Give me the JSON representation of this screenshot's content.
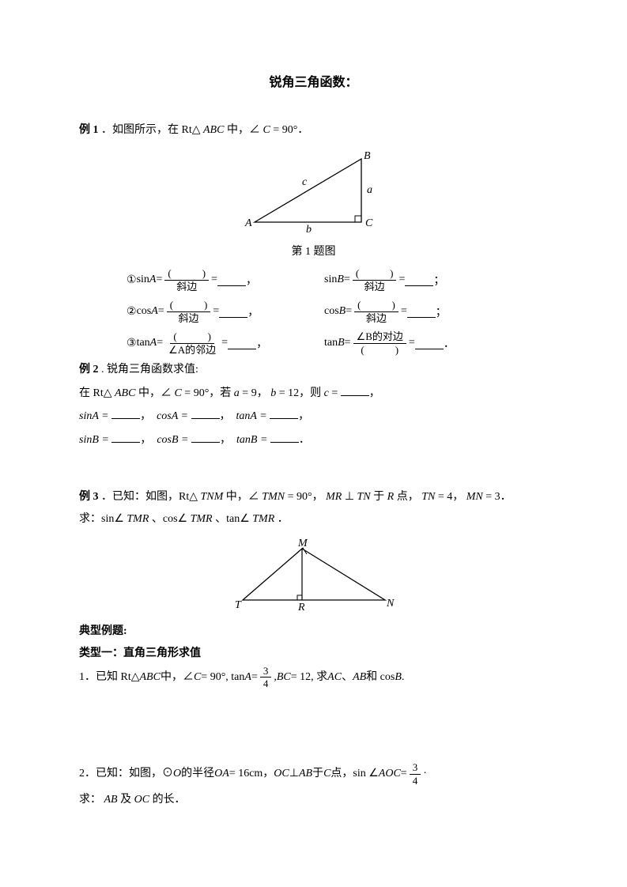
{
  "title": "锐角三角函数：",
  "ex1": {
    "label": "例 1",
    "text": "．如图所示，在 Rt△",
    "tri": "ABC",
    "after": " 中，∠",
    "ang": "C",
    "eq": " = 90°．",
    "caption": "第 1 题图",
    "fig": {
      "A": "A",
      "B": "B",
      "C": "C",
      "a": "a",
      "b": "b",
      "c": "c",
      "bg": "#ffffff",
      "stroke": "#000000"
    },
    "rows": [
      {
        "n": "①",
        "lf": "sin",
        "la": "A",
        "lnum": "(　　　)",
        "lden": "斜边",
        "rf": "sin",
        "ra": "B",
        "rnum": "(　　　)",
        "rden": "斜边",
        "endl": "，",
        "endr": "；"
      },
      {
        "n": "②",
        "lf": "cos",
        "la": "A",
        "lnum": "(　　　)",
        "lden": "斜边",
        "rf": "cos",
        "ra": "B",
        "rnum": "(　　　)",
        "rden": "斜边",
        "endl": "，",
        "endr": "；"
      },
      {
        "n": "③",
        "lf": "tan",
        "la": "A",
        "lnum": "(　　　)",
        "lden": "∠A的邻边",
        "rf": "tan",
        "ra": "B",
        "rnum": "∠B的对边",
        "rden": "(　　　)",
        "endl": "，",
        "endr": "．"
      }
    ]
  },
  "ex2": {
    "label": "例 2",
    "title": ". 锐角三角函数求值:",
    "line1_a": "在 Rt△",
    "tri": "ABC",
    "line1_b": " 中，∠",
    "ang": "C",
    "line1_c": " = 90°，若 ",
    "a": "a",
    "av": " = 9，",
    "b": "b",
    "bv": " = 12，则 ",
    "c": "c",
    "cv": " = ",
    "line2_items": [
      "sinA = ",
      "cosA = ",
      "tanA = "
    ],
    "line3_items": [
      "sinB = ",
      "cosB = ",
      "tanB = "
    ]
  },
  "ex3": {
    "label": "例 3",
    "text1": "．已知：如图，Rt△",
    "tri": "TNM",
    "text2": " 中，∠",
    "ang": "TMN",
    "text3": " = 90°，",
    "perp1": "MR",
    "perp_sym": "⊥",
    "perp2": "TN",
    "text4": " 于 ",
    "R": "R",
    "text5": " 点，",
    "TN": "TN",
    "TNv": " = 4，",
    "MN": "MN",
    "MNv": " = 3．",
    "q": "求：sin∠",
    "t1": "TMR",
    "q2": "、cos∠",
    "t2": "TMR",
    "q3": "、tan∠",
    "t3": "TMR",
    "q4": "．",
    "fig": {
      "T": "T",
      "M": "M",
      "N": "N",
      "R": "R",
      "stroke": "#000000"
    }
  },
  "typical": {
    "header": "典型例题:",
    "type1": "类型一：直角三角形求值"
  },
  "p1": {
    "n": "1．",
    "a": "已知 Rt△",
    "tri": "ABC",
    "b": " 中，∠",
    "ang": "C",
    "c": " = 90°, tan ",
    "A": "A",
    "eq": " = ",
    "frac_num": "3",
    "frac_den": "4",
    "d": ", ",
    "BC": "BC",
    "e": " = 12,  求 ",
    "AC": "AC",
    "sep1": "、",
    "AB": "AB",
    "sep2": " 和 cos",
    "B": "B",
    "end": " ."
  },
  "p2": {
    "n": "2．",
    "a": "已知：如图，⊙",
    "O": "O",
    "b": " 的半径 ",
    "OA": "OA",
    "c": " = 16cm，",
    "OC": "OC",
    "perp": "⊥",
    "AB": "AB",
    "d": " 于 ",
    "C": "C",
    "e": " 点，",
    "sin": "sin ∠",
    "AOC": "AOC",
    "eq": " = ",
    "frac_num": "3",
    "frac_den": "4",
    "dot": "·",
    "q": "求：",
    "AB2": "AB",
    "and": " 及 ",
    "OC2": "OC",
    "end": " 的长．"
  }
}
